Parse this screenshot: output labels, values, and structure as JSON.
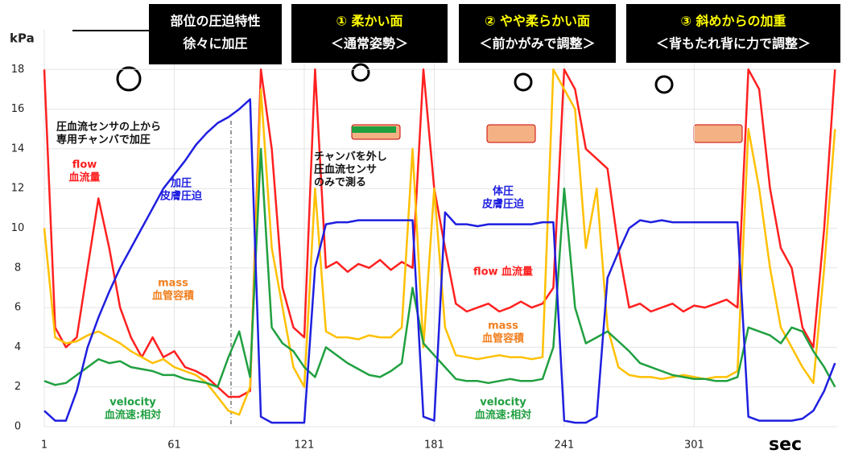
{
  "chart_data": {
    "type": "line",
    "y_label": "kPa",
    "x_label": "sec",
    "xlim": [
      1,
      367
    ],
    "ylim": [
      0,
      20
    ],
    "xticks": [
      1,
      61,
      121,
      181,
      241,
      301
    ],
    "yticks": [
      0,
      2,
      4,
      6,
      8,
      10,
      12,
      14,
      16,
      18
    ],
    "grid": true,
    "x": [
      1,
      6,
      11,
      16,
      21,
      26,
      31,
      36,
      41,
      46,
      51,
      56,
      61,
      66,
      71,
      76,
      81,
      86,
      91,
      96,
      101,
      106,
      111,
      116,
      121,
      126,
      131,
      136,
      141,
      146,
      151,
      156,
      161,
      166,
      171,
      176,
      181,
      186,
      191,
      196,
      201,
      206,
      211,
      216,
      221,
      226,
      231,
      236,
      241,
      246,
      251,
      256,
      261,
      266,
      271,
      276,
      281,
      286,
      291,
      296,
      301,
      306,
      311,
      316,
      321,
      326,
      331,
      336,
      341,
      346,
      351,
      356,
      361,
      366
    ],
    "series": [
      {
        "color": "#ff2020",
        "values": [
          18,
          5,
          4,
          4.5,
          8,
          11.5,
          9,
          6,
          4.5,
          3.5,
          4.5,
          3.5,
          3.8,
          3,
          2.8,
          2.5,
          2,
          1.5,
          1.5,
          1.8,
          18,
          14,
          7,
          5,
          4.5,
          18,
          8,
          8.3,
          7.8,
          8.2,
          8,
          8.4,
          7.9,
          8.3,
          8,
          18,
          12,
          9,
          6.2,
          5.8,
          6,
          6.2,
          5.8,
          6,
          6.3,
          6,
          6.2,
          7,
          18,
          17,
          14,
          13.5,
          13,
          9,
          6,
          6.2,
          5.8,
          6,
          6.2,
          5.8,
          6.1,
          6,
          6.2,
          6.4,
          6,
          18,
          17,
          12,
          9,
          8,
          5,
          4,
          10,
          18
        ]
      },
      {
        "color": "#ffc000",
        "values": [
          10,
          4.5,
          4.2,
          4.3,
          4.6,
          4.8,
          4.5,
          4.2,
          3.8,
          3.5,
          3.2,
          3.4,
          3,
          2.8,
          2.6,
          2.2,
          1.5,
          0.8,
          0.6,
          2,
          17,
          9,
          6,
          3,
          2,
          12,
          4.8,
          4.5,
          4.5,
          4.4,
          4.6,
          4.5,
          4.5,
          5,
          14,
          4,
          12,
          5,
          3.6,
          3.5,
          3.4,
          3.5,
          3.6,
          3.5,
          3.5,
          3.4,
          3.5,
          18,
          17,
          16,
          9,
          12,
          5,
          3,
          2.6,
          2.5,
          2.5,
          2.4,
          2.5,
          2.6,
          2.5,
          2.4,
          2.5,
          2.5,
          2.8,
          15,
          12,
          8,
          5,
          4,
          3,
          2.2,
          8,
          15
        ]
      },
      {
        "color": "#20a040",
        "values": [
          2.3,
          2.1,
          2.2,
          2.6,
          3,
          3.4,
          3.2,
          3.3,
          3,
          2.9,
          2.8,
          2.6,
          2.6,
          2.4,
          2.3,
          2.2,
          2,
          3.5,
          4.8,
          2.5,
          14,
          5,
          4.2,
          3.8,
          3,
          2.5,
          4,
          3.6,
          3.2,
          2.9,
          2.6,
          2.5,
          2.8,
          3.2,
          7,
          4.2,
          3.6,
          3,
          2.4,
          2.3,
          2.3,
          2.2,
          2.3,
          2.4,
          2.3,
          2.3,
          2.4,
          4,
          12,
          6,
          4.2,
          4.5,
          4.8,
          4.3,
          3.8,
          3.2,
          3,
          2.8,
          2.6,
          2.5,
          2.4,
          2.4,
          2.3,
          2.3,
          2.5,
          5,
          4.8,
          4.6,
          4.2,
          5,
          4.8,
          3.8,
          3,
          2
        ]
      },
      {
        "color": "#1f1fe0",
        "values": [
          0.8,
          0.3,
          0.3,
          1.8,
          4,
          5.5,
          6.8,
          8,
          9,
          10,
          11,
          12,
          12.7,
          13.4,
          14.2,
          14.8,
          15.3,
          15.6,
          16,
          16.5,
          0.5,
          0.2,
          0.2,
          0.2,
          0.2,
          8,
          10.2,
          10.3,
          10.3,
          10.4,
          10.4,
          10.4,
          10.4,
          10.4,
          10.4,
          0.5,
          0.3,
          10.8,
          10.2,
          10.2,
          10.1,
          10.2,
          10.2,
          10.2,
          10.2,
          10.2,
          10.3,
          10.3,
          0.3,
          0.2,
          0.2,
          0.5,
          7.5,
          8.8,
          10,
          10.4,
          10.3,
          10.4,
          10.3,
          10.3,
          10.3,
          10.3,
          10.3,
          10.3,
          10.3,
          0.5,
          0.3,
          0.3,
          0.3,
          0.3,
          0.4,
          0.8,
          1.8,
          3.2
        ]
      }
    ],
    "annotations": [
      {
        "lines": [
          "圧血流センサの上から",
          "専用チャンバで加圧"
        ],
        "color": "#111111"
      },
      {
        "lines": [
          "flow",
          "血流量"
        ],
        "color": "#ff2020"
      },
      {
        "lines": [
          "加圧",
          "皮膚圧迫"
        ],
        "color": "#1f1fe0"
      },
      {
        "lines": [
          "mass",
          "血管容積"
        ],
        "color": "#f08020"
      },
      {
        "lines": [
          "velocity",
          "血流速:相対"
        ],
        "color": "#20a040"
      },
      {
        "lines": [
          "チャンバを外し",
          "圧血流センサ",
          "のみで測る"
        ],
        "color": "#111111"
      },
      {
        "lines": [
          "体圧",
          "皮膚圧迫"
        ],
        "color": "#1f1fe0"
      },
      {
        "lines": [
          "flow 血流量"
        ],
        "color": "#ff2020"
      },
      {
        "lines": [
          "mass",
          "血管容積"
        ],
        "color": "#f08020"
      },
      {
        "lines": [
          "velocity",
          "血流速:相対"
        ],
        "color": "#20a040"
      }
    ],
    "panels": [
      {
        "lines": [
          {
            "text": "部位の圧迫特性",
            "color": "#ffffff"
          },
          {
            "text": "徐々に加圧",
            "color": "#ffffff"
          }
        ]
      },
      {
        "lines": [
          {
            "text": "① 柔かい面",
            "color": "#ffff00"
          },
          {
            "text": "＜通常姿勢＞",
            "color": "#ffffff"
          }
        ]
      },
      {
        "lines": [
          {
            "text": "② やや柔らかい面",
            "color": "#ffff00"
          },
          {
            "text": "＜前かがみで調整＞",
            "color": "#ffffff"
          }
        ]
      },
      {
        "lines": [
          {
            "text": "③ 斜めからの加重",
            "color": "#ffff00"
          },
          {
            "text": "＜背もたれ背に力で調整＞",
            "color": "#ffffff"
          }
        ]
      }
    ]
  }
}
